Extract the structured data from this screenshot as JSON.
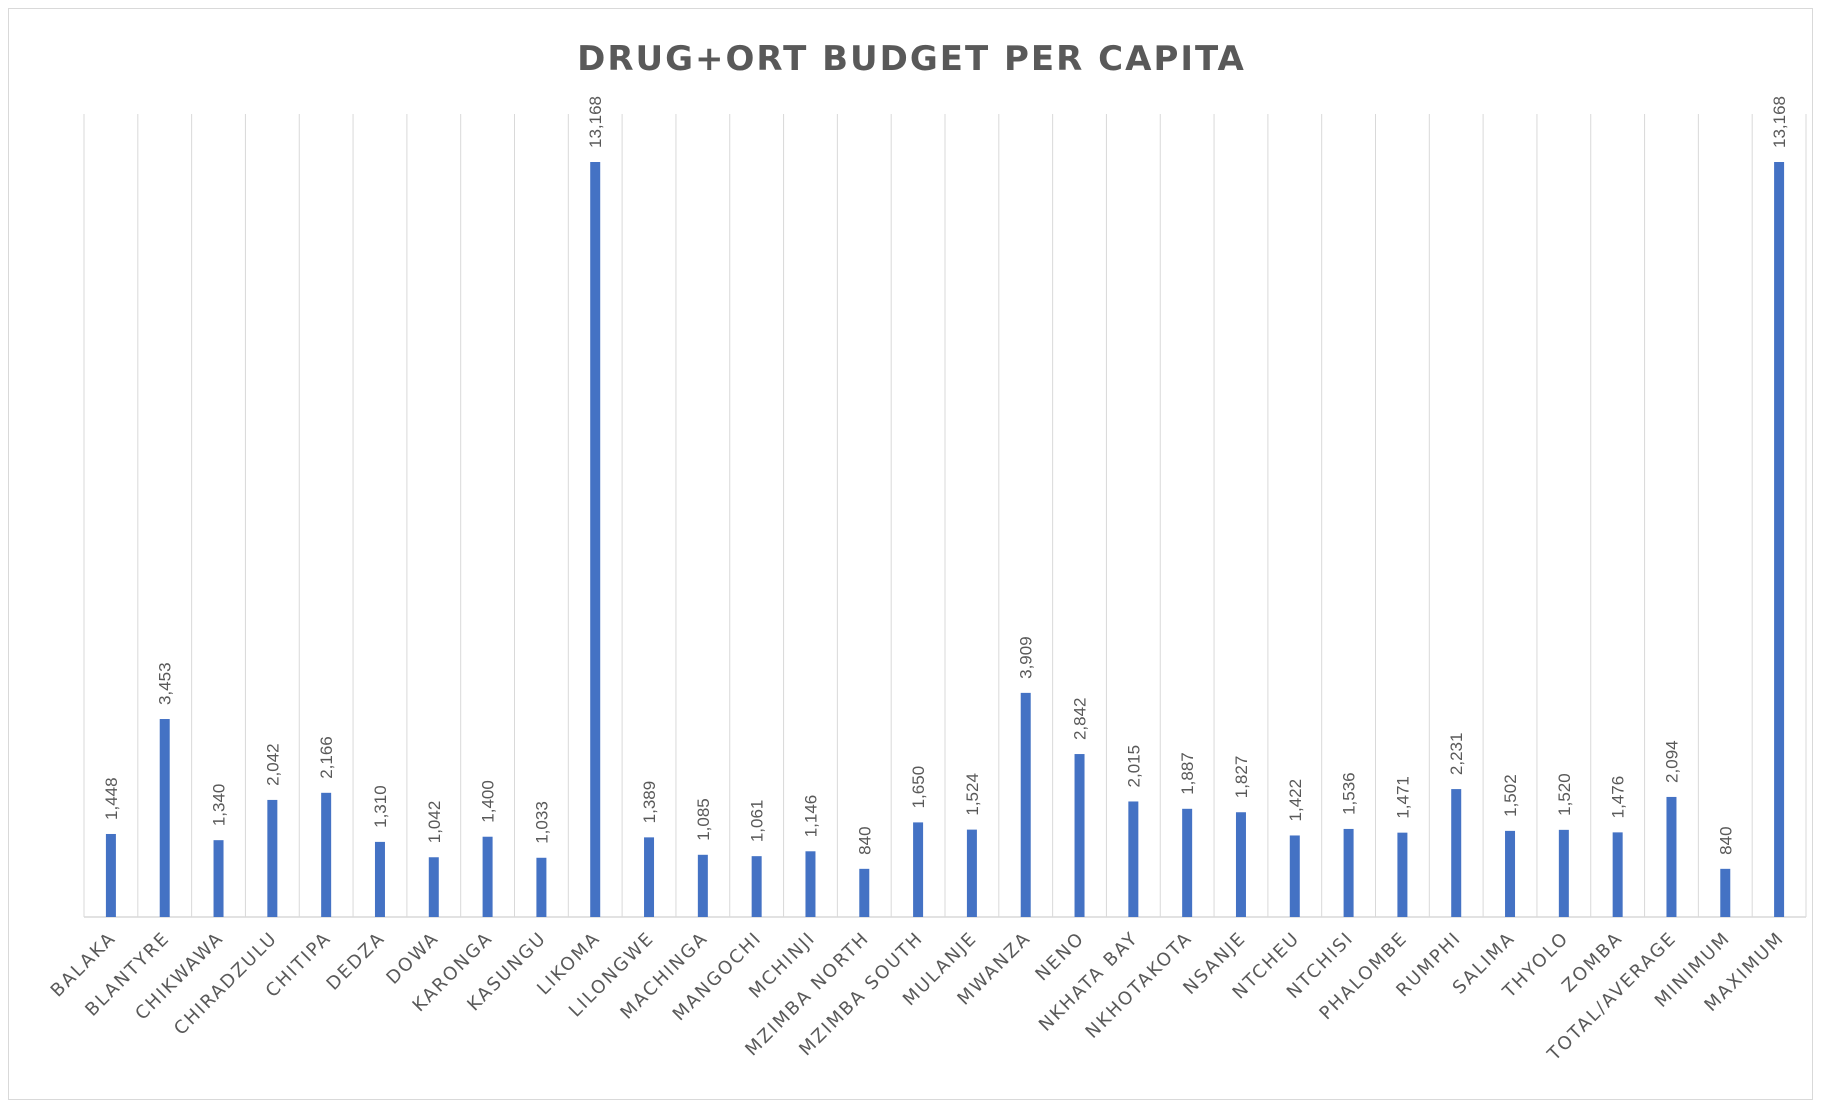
{
  "chart_data": {
    "type": "bar",
    "title": "DRUG+ORT BUDGET PER CAPITA",
    "xlabel": "",
    "ylabel": "",
    "ylim": [
      0,
      15000
    ],
    "grid": "vertical category gridlines",
    "legend": "none",
    "bar_color": "#4472c4",
    "categories": [
      "BALAKA",
      "BLANTYRE",
      "CHIKWAWA",
      "CHIRADZULU",
      "CHITIPA",
      "DEDZA",
      "DOWA",
      "KARONGA",
      "KASUNGU",
      "LIKOMA",
      "LILONGWE",
      "MACHINGA",
      "MANGOCHI",
      "MCHINJI",
      "MZIMBA NORTH",
      "MZIMBA SOUTH",
      "MULANJE",
      "MWANZA",
      "NENO",
      "NKHATA BAY",
      "NKHOTAKOTA",
      "NSANJE",
      "NTCHEU",
      "NTCHISI",
      "PHALOMBE",
      "RUMPHI",
      "SALIMA",
      "THYOLO",
      "ZOMBA",
      "TOTAL/AVERAGE",
      "MINIMUM",
      "MAXIMUM"
    ],
    "values": [
      1448,
      3453,
      1340,
      2042,
      2166,
      1310,
      1042,
      1400,
      1033,
      13168,
      1389,
      1085,
      1061,
      1146,
      840,
      1650,
      1524,
      3909,
      2842,
      2015,
      1887,
      1827,
      1422,
      1536,
      1471,
      2231,
      1502,
      1520,
      1476,
      2094,
      840,
      13168
    ],
    "data_labels": [
      "1,448",
      "3,453",
      "1,340",
      "2,042",
      "2,166",
      "1,310",
      "1,042",
      "1,400",
      "1,033",
      "13,168",
      "1,389",
      "1,085",
      "1,061",
      "1,146",
      "840",
      "1,650",
      "1,524",
      "3,909",
      "2,842",
      "2,015",
      "1,887",
      "1,827",
      "1,422",
      "1,536",
      "1,471",
      "2,231",
      "1,502",
      "1,520",
      "1,476",
      "2,094",
      "840",
      "13,168"
    ]
  }
}
